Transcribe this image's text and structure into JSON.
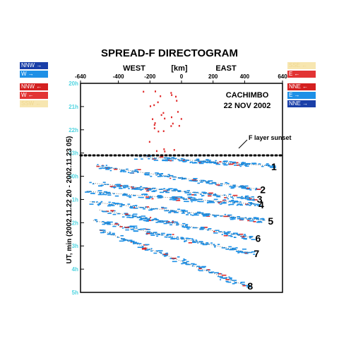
{
  "chart_data": {
    "type": "scatter",
    "title": "SPREAD-F DIRECTOGRAM",
    "xlabel": "[km]",
    "ylabel": "UT, min (2002.11.22 20 - 2002.11.23 05)",
    "x_direction_labels": [
      "WEST",
      "EAST"
    ],
    "xlim": [
      -640,
      640
    ],
    "ylim_hours": [
      20,
      29
    ],
    "x_ticks": [
      "-640",
      "-400",
      "-200",
      "0",
      "200",
      "400",
      "640"
    ],
    "y_ticks": [
      "20h",
      "21h",
      "22h",
      "23h",
      "00h",
      "1h",
      "2h",
      "3h",
      "4h",
      "5h"
    ],
    "station": "CACHIMBO",
    "date": "22 NOV 2002",
    "annotation": "F layer sunset",
    "sunset_time_h": 23.1,
    "legend_left": [
      {
        "label": "NNW →",
        "bg": "#1a3fa8",
        "fg": "#ffffff"
      },
      {
        "label": "W →",
        "bg": "#1e90e6",
        "fg": "#ffffff"
      },
      {
        "label": "NNW ←",
        "bg": "#d42020",
        "fg": "#ffffff"
      },
      {
        "label": "W ←",
        "bg": "#e23434",
        "fg": "#ffffff"
      },
      {
        "label": "SSW ←",
        "bg": "#f7e6b0",
        "fg": "#f0d890"
      }
    ],
    "legend_right": [
      {
        "label": "SSE ←",
        "bg": "#f7e6b0",
        "fg": "#f0d890"
      },
      {
        "label": "E ←",
        "bg": "#e23434",
        "fg": "#ffffff"
      },
      {
        "label": "NNE ←",
        "bg": "#d42020",
        "fg": "#ffffff"
      },
      {
        "label": "E →",
        "bg": "#1e90e6",
        "fg": "#ffffff"
      },
      {
        "label": "NNE →",
        "bg": "#1a3fa8",
        "fg": "#ffffff"
      }
    ],
    "tracks": [
      {
        "label": "1",
        "start": [
          -280,
          23.15
        ],
        "end": [
          560,
          23.55
        ]
      },
      {
        "label": "2",
        "start": [
          -540,
          23.55
        ],
        "end": [
          480,
          24.55
        ]
      },
      {
        "label": "3",
        "start": [
          -560,
          24.3
        ],
        "end": [
          460,
          24.95
        ]
      },
      {
        "label": "4",
        "start": [
          -600,
          24.65
        ],
        "end": [
          470,
          25.2
        ]
      },
      {
        "label": "5",
        "start": [
          -580,
          25.1
        ],
        "end": [
          530,
          25.9
        ]
      },
      {
        "label": "6",
        "start": [
          -520,
          25.45
        ],
        "end": [
          450,
          26.65
        ]
      },
      {
        "label": "7",
        "start": [
          -560,
          25.9
        ],
        "end": [
          440,
          27.3
        ]
      },
      {
        "label": "8",
        "start": [
          -520,
          26.3
        ],
        "end": [
          400,
          28.7
        ]
      }
    ],
    "colors": {
      "westward": "#1e90e6",
      "eastward": "#e02828",
      "axis": "#000000",
      "tick_text": "#4fd4e0"
    }
  }
}
